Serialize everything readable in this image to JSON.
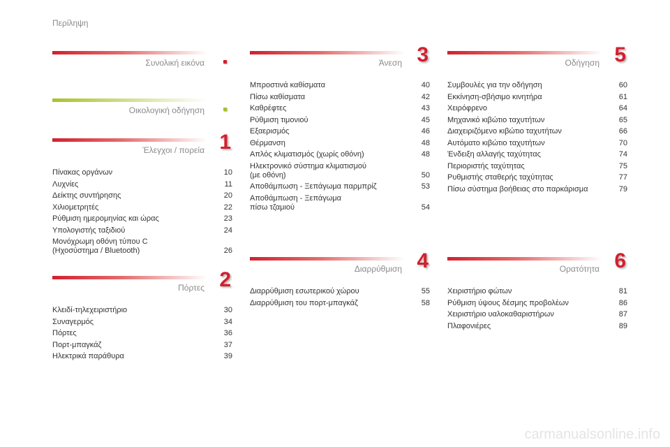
{
  "page_title": "Περίληψη",
  "accent": "#d2202e",
  "eco": "#a8c22a",
  "sections": [
    {
      "title": "Συνολική εικόνα",
      "marker": "dot",
      "color": "red",
      "items": []
    },
    {
      "title": "Οικολογική οδήγηση",
      "marker": "dot",
      "color": "green",
      "items": []
    },
    {
      "title": "Έλεγχοι / πορεία",
      "marker": "1",
      "color": "red",
      "items": [
        {
          "t": "Πίνακας οργάνων",
          "p": "10"
        },
        {
          "t": "Λυχνίες",
          "p": "11"
        },
        {
          "t": "Δείκτης συντήρησης",
          "p": "20"
        },
        {
          "t": "Χιλιομετρητές",
          "p": "22"
        },
        {
          "t": "Ρύθμιση ημερομηνίας και ώρας",
          "p": "23"
        },
        {
          "t": "Υπολογιστής ταξιδιού",
          "p": "24"
        },
        {
          "t": "Μονόχρωμη οθόνη τύπου C\n   (Ηχοσύστημα / Bluetooth)",
          "p": "26"
        }
      ]
    },
    {
      "title": "Πόρτες",
      "marker": "2",
      "color": "red",
      "items": [
        {
          "t": "Κλειδί-τηλεχειριστήριο",
          "p": "30"
        },
        {
          "t": "Συναγερμός",
          "p": "34"
        },
        {
          "t": "Πόρτες",
          "p": "36"
        },
        {
          "t": "Πορτ-μπαγκάζ",
          "p": "37"
        },
        {
          "t": "Ηλεκτρικά παράθυρα",
          "p": "39"
        }
      ]
    },
    {
      "title": "Άνεση",
      "marker": "3",
      "color": "red",
      "items": [
        {
          "t": "Μπροστινά καθίσματα",
          "p": "40"
        },
        {
          "t": "Πίσω καθίσματα",
          "p": "42"
        },
        {
          "t": "Καθρέφτες",
          "p": "43"
        },
        {
          "t": "Ρύθμιση τιμονιού",
          "p": "45"
        },
        {
          "t": "Εξαερισμός",
          "p": "46"
        },
        {
          "t": "Θέρμανση",
          "p": "48"
        },
        {
          "t": "Απλός κλιματισμός (χωρίς οθόνη)",
          "p": "48"
        },
        {
          "t": "Ηλεκτρονικό σύστημα κλιματισμού\n   (με οθόνη)",
          "p": "50"
        },
        {
          "t": "Αποθάμπωση - Ξεπάγωμα παρμπρίζ",
          "p": "53"
        },
        {
          "t": "Αποθάμπωση - Ξεπάγωμα\n   πίσω τζαμιού",
          "p": "54"
        }
      ]
    },
    {
      "title": "Διαρρύθμιση",
      "marker": "4",
      "color": "red",
      "items": [
        {
          "t": "Διαρρύθμιση εσωτερικού χώρου",
          "p": "55"
        },
        {
          "t": "Διαρρύθμιση του πορτ-μπαγκάζ",
          "p": "58"
        }
      ]
    },
    {
      "title": "Οδήγηση",
      "marker": "5",
      "color": "red",
      "items": [
        {
          "t": "Συμβουλές για την οδήγηση",
          "p": "60"
        },
        {
          "t": "Εκκίνηση-σβήσιμο κινητήρα",
          "p": "61"
        },
        {
          "t": "Χειρόφρενο",
          "p": "64"
        },
        {
          "t": "Μηχανικό κιβώτιο ταχυτήτων",
          "p": "65"
        },
        {
          "t": "Διαχειριζόμενο κιβώτιο ταχυτήτων",
          "p": "66"
        },
        {
          "t": "Αυτόματο κιβώτιο ταχυτήτων",
          "p": "70"
        },
        {
          "t": "Ένδειξη αλλαγής ταχύτητας",
          "p": "74"
        },
        {
          "t": "Περιοριστής ταχύτητας",
          "p": "75"
        },
        {
          "t": "Ρυθμιστής σταθερής ταχύτητας",
          "p": "77"
        },
        {
          "t": "Πίσω σύστημα βοήθειας στο παρκάρισμα",
          "p": "79"
        }
      ]
    },
    {
      "title": "Ορατότητα",
      "marker": "6",
      "color": "red",
      "items": [
        {
          "t": "Χειριστήριο φώτων",
          "p": "81"
        },
        {
          "t": "Ρύθμιση ύψους δέσμης προβολέων",
          "p": "86"
        },
        {
          "t": "Χειριστήριο υαλοκαθαριστήρων",
          "p": "87"
        },
        {
          "t": "Πλαφονιέρες",
          "p": "89"
        }
      ]
    }
  ],
  "watermark": "carmanualsonline.info"
}
